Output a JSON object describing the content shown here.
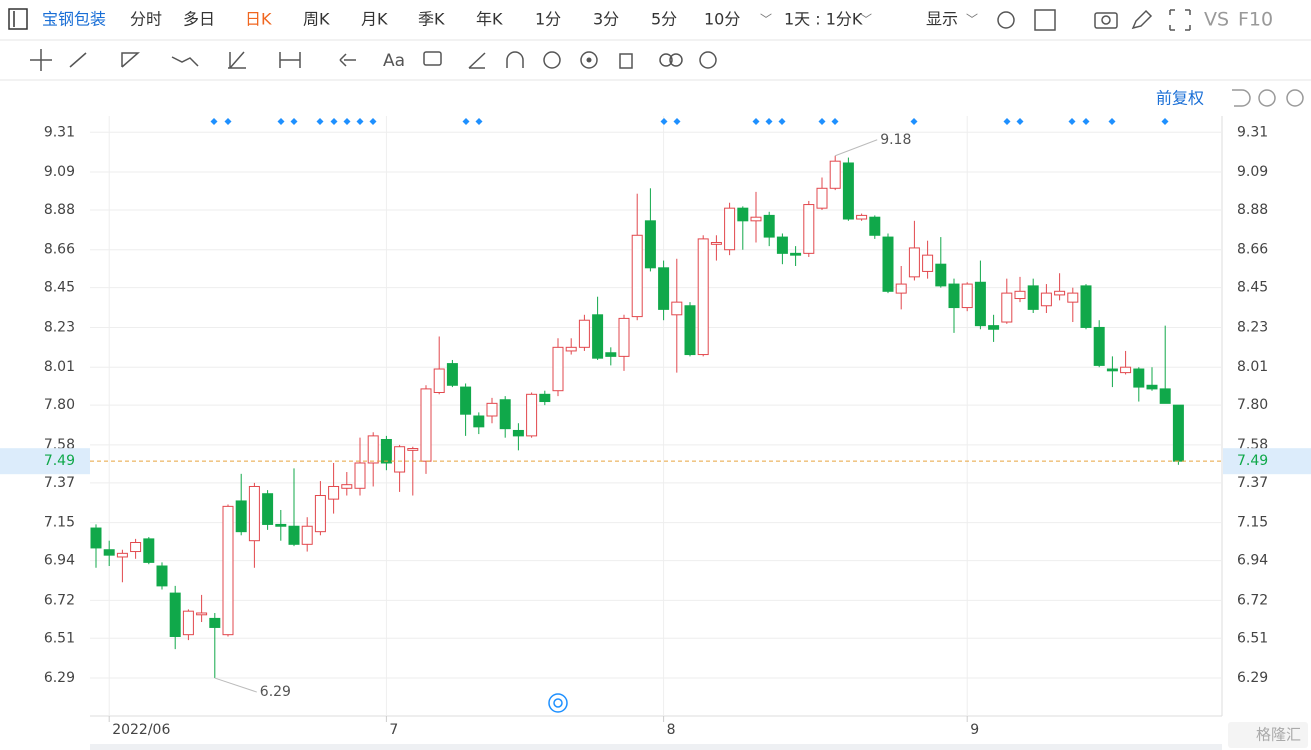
{
  "toolbar": {
    "stock_name": "宝钢包装",
    "periods": [
      "分时",
      "多日",
      "日K",
      "周K",
      "月K",
      "季K",
      "年K",
      "1分",
      "3分",
      "5分",
      "10分"
    ],
    "selected_period": 2,
    "interval": "1天 : 1分K",
    "display": "显示",
    "vs": "VS",
    "f10": "F10"
  },
  "adjust": "前复权",
  "watermark": "格隆汇",
  "chart_data": {
    "type": "candlestick",
    "categories": [
      null,
      "2022/06",
      null,
      null,
      null,
      null,
      null,
      null,
      null,
      null,
      null,
      null,
      null,
      null,
      null,
      null,
      null,
      null,
      null,
      null,
      null,
      null,
      "7",
      null,
      null,
      null,
      null,
      null,
      null,
      null,
      null,
      null,
      null,
      null,
      null,
      null,
      null,
      null,
      null,
      null,
      null,
      null,
      null,
      "8",
      null,
      null,
      null,
      null,
      null,
      null,
      null,
      null,
      null,
      null,
      null,
      null,
      null,
      null,
      null,
      null,
      null,
      null,
      null,
      null,
      null,
      null,
      "9",
      null,
      null,
      null,
      null,
      null,
      null,
      null,
      null,
      null,
      null,
      null,
      null,
      null,
      null,
      null,
      null
    ],
    "open": [
      7.12,
      7.0,
      6.96,
      6.99,
      7.06,
      6.91,
      6.76,
      6.53,
      6.64,
      6.62,
      6.53,
      7.27,
      7.05,
      7.31,
      7.14,
      7.13,
      7.03,
      7.1,
      7.28,
      7.34,
      7.34,
      7.48,
      7.61,
      7.43,
      7.55,
      7.49,
      7.87,
      8.03,
      7.9,
      7.74,
      7.74,
      7.83,
      7.66,
      7.63,
      7.86,
      7.88,
      8.1,
      8.12,
      8.3,
      8.09,
      8.07,
      8.29,
      8.82,
      8.56,
      8.3,
      8.35,
      8.08,
      8.69,
      8.66,
      8.89,
      8.82,
      8.85,
      8.73,
      8.64,
      8.64,
      8.89,
      9.0,
      9.14,
      8.83,
      8.84,
      8.73,
      8.42,
      8.51,
      8.54,
      8.58,
      8.47,
      8.34,
      8.48,
      8.24,
      8.26,
      8.39,
      8.46,
      8.35,
      8.41,
      8.37,
      8.46,
      8.23,
      8.0,
      7.98,
      8.0,
      7.91,
      7.89,
      7.8
    ],
    "high": [
      7.14,
      7.05,
      7.0,
      7.06,
      7.07,
      6.93,
      6.8,
      6.67,
      6.75,
      6.65,
      7.25,
      7.42,
      7.37,
      7.33,
      7.22,
      7.45,
      7.18,
      7.38,
      7.48,
      7.43,
      7.62,
      7.65,
      7.63,
      7.58,
      7.57,
      7.91,
      8.18,
      8.05,
      7.92,
      7.76,
      7.84,
      7.85,
      7.7,
      7.87,
      7.88,
      8.17,
      8.17,
      8.3,
      8.4,
      8.12,
      8.3,
      8.97,
      9.0,
      8.6,
      8.61,
      8.37,
      8.74,
      8.74,
      8.92,
      8.9,
      8.98,
      8.87,
      8.75,
      8.68,
      8.93,
      9.06,
      9.18,
      9.17,
      8.86,
      8.85,
      8.75,
      8.57,
      8.82,
      8.71,
      8.73,
      8.5,
      8.48,
      8.6,
      8.3,
      8.5,
      8.51,
      8.5,
      8.47,
      8.53,
      8.45,
      8.47,
      8.27,
      8.07,
      8.1,
      8.01,
      8.01,
      8.24,
      7.8
    ],
    "low": [
      6.9,
      6.91,
      6.82,
      6.95,
      6.92,
      6.78,
      6.45,
      6.5,
      6.6,
      6.29,
      6.52,
      7.08,
      6.9,
      7.11,
      7.05,
      7.02,
      6.99,
      7.08,
      7.2,
      7.3,
      7.3,
      7.35,
      7.44,
      7.32,
      7.3,
      7.42,
      7.86,
      7.9,
      7.63,
      7.64,
      7.7,
      7.62,
      7.55,
      7.62,
      7.8,
      7.85,
      8.08,
      8.1,
      8.05,
      8.02,
      7.99,
      8.27,
      8.54,
      8.27,
      7.98,
      8.07,
      8.07,
      8.6,
      8.63,
      8.66,
      8.7,
      8.68,
      8.58,
      8.57,
      8.62,
      8.88,
      8.99,
      8.82,
      8.82,
      8.72,
      8.42,
      8.33,
      8.49,
      8.5,
      8.45,
      8.2,
      8.32,
      8.22,
      8.15,
      8.25,
      8.37,
      8.31,
      8.31,
      8.38,
      8.26,
      8.22,
      8.01,
      7.9,
      7.97,
      7.82,
      7.88,
      7.81,
      7.47
    ],
    "close": [
      7.01,
      6.97,
      6.98,
      7.04,
      6.93,
      6.8,
      6.52,
      6.66,
      6.65,
      6.57,
      7.24,
      7.1,
      7.35,
      7.14,
      7.13,
      7.03,
      7.13,
      7.3,
      7.35,
      7.36,
      7.48,
      7.63,
      7.48,
      7.57,
      7.56,
      7.89,
      8.0,
      7.91,
      7.75,
      7.68,
      7.81,
      7.67,
      7.63,
      7.86,
      7.82,
      8.12,
      8.12,
      8.27,
      8.06,
      8.07,
      8.28,
      8.74,
      8.56,
      8.33,
      8.37,
      8.08,
      8.72,
      8.7,
      8.89,
      8.82,
      8.84,
      8.73,
      8.64,
      8.63,
      8.91,
      9.0,
      9.15,
      8.83,
      8.85,
      8.74,
      8.43,
      8.47,
      8.67,
      8.63,
      8.46,
      8.34,
      8.47,
      8.24,
      8.22,
      8.42,
      8.43,
      8.33,
      8.42,
      8.43,
      8.42,
      8.23,
      8.02,
      7.99,
      8.01,
      7.9,
      7.89,
      7.81,
      7.49
    ],
    "up_color": "#e2474c",
    "down_color": "#10a84a",
    "ylim": [
      6.08,
      9.4
    ],
    "yticks": [
      9.31,
      9.09,
      8.88,
      8.66,
      8.45,
      8.23,
      8.01,
      {
        "value": 7.8,
        "label": "7.80"
      },
      7.58,
      7.37,
      7.15,
      6.94,
      6.72,
      6.51,
      6.29
    ],
    "grid": true
  }
}
